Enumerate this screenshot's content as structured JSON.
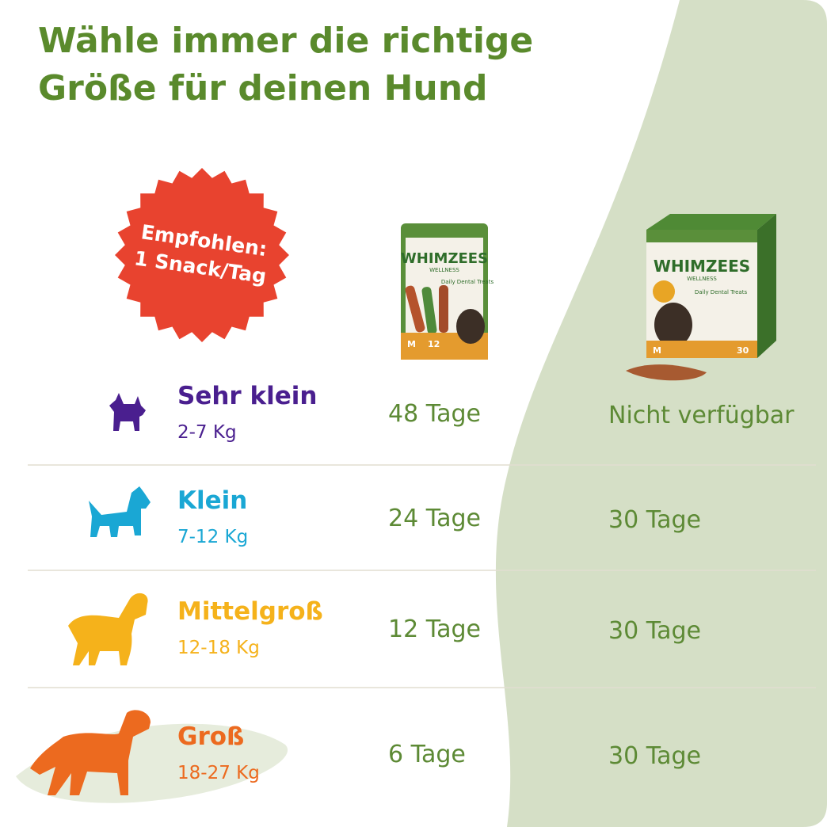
{
  "header": {
    "title_lines": [
      "Wähle immer die richtige",
      "Größe für deinen Hund"
    ]
  },
  "badge": {
    "lines": [
      "Empfohlen:",
      "1 Snack/Tag"
    ]
  },
  "products": [
    {
      "brand": "WHIMZEES",
      "sub": "WELLNESS",
      "label": "Daily Dental Treats",
      "size": "M",
      "count": "12"
    },
    {
      "brand": "WHIMZEES",
      "sub": "WELLNESS",
      "label": "Daily Dental Treats",
      "size": "M",
      "count": "30"
    }
  ],
  "table": {
    "rows": [
      {
        "name": "Sehr klein",
        "weight": "2-7 Kg",
        "pouch": "48 Tage",
        "box": "Nicht verfügbar"
      },
      {
        "name": "Klein",
        "weight": "7-12 Kg",
        "pouch": "24 Tage",
        "box": "30 Tage"
      },
      {
        "name": "Mittelgroß",
        "weight": "12-18 Kg",
        "pouch": "12 Tage",
        "box": "30 Tage"
      },
      {
        "name": "Groß",
        "weight": "18-27 Kg",
        "pouch": "6 Tage",
        "box": "30 Tage"
      }
    ]
  }
}
